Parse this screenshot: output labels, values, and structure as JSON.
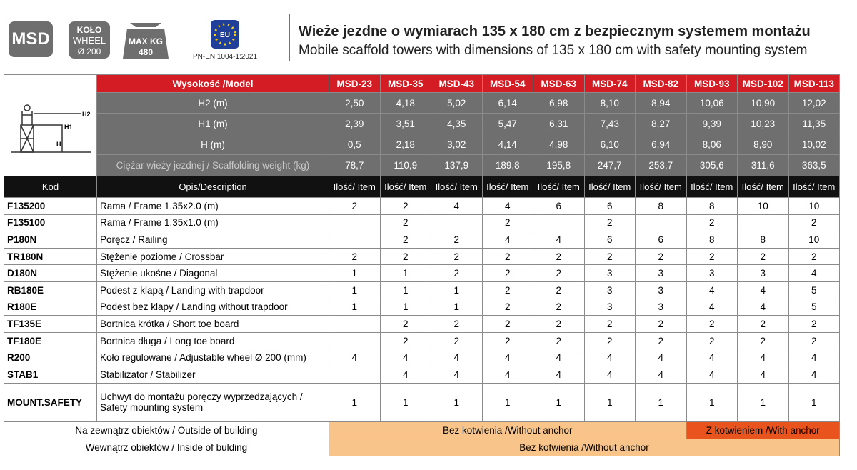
{
  "header": {
    "badge_model": "MSD",
    "badge_wheel": [
      "KOŁO",
      "WHEEL",
      "Ø 200"
    ],
    "badge_weight": [
      "MAX KG",
      "480"
    ],
    "badge_eu": "EU",
    "norm": "PN-EN 1004-1:2021",
    "title_pl": "Wieże jezdne o wymiarach 135 x 180 cm z bezpiecznym systemem montażu",
    "title_en": "Mobile scaffold towers with dimensions of 135 x 180 cm with safety mounting system"
  },
  "diagram": {
    "labels": [
      "H2",
      "H1",
      "H"
    ]
  },
  "table": {
    "model_label": "Wysokość /Model",
    "models": [
      "MSD-23",
      "MSD-35",
      "MSD-43",
      "MSD-54",
      "MSD-63",
      "MSD-74",
      "MSD-82",
      "MSD-93",
      "MSD-102",
      "MSD-113"
    ],
    "spec_rows": [
      {
        "label": "H2 (m)",
        "values": [
          "2,50",
          "4,18",
          "5,02",
          "6,14",
          "6,98",
          "8,10",
          "8,94",
          "10,06",
          "10,90",
          "12,02"
        ]
      },
      {
        "label": "H1 (m)",
        "values": [
          "2,39",
          "3,51",
          "4,35",
          "5,47",
          "6,31",
          "7,43",
          "8,27",
          "9,39",
          "10,23",
          "11,35"
        ]
      },
      {
        "label": "H (m)",
        "values": [
          "0,5",
          "2,18",
          "3,02",
          "4,14",
          "4,98",
          "6,10",
          "6,94",
          "8,06",
          "8,90",
          "10,02"
        ]
      },
      {
        "label": "Ciężar wieży jezdnej / Scaffolding weight (kg)",
        "values": [
          "78,7",
          "110,9",
          "137,9",
          "189,8",
          "195,8",
          "247,7",
          "253,7",
          "305,6",
          "311,6",
          "363,5"
        ]
      }
    ],
    "code_header": "Kod",
    "description_header": "Opis/Description",
    "item_headers": [
      "Ilość/ Item",
      "Ilość/ Item",
      "Ilość/ Item",
      "Ilość/ Item",
      "Ilość/ Item",
      "Ilość/ Item",
      "Ilość/ Item",
      "Ilość/ Item",
      "Ilość/ Item",
      "Ilość/ Item"
    ],
    "rows": [
      {
        "code": "F135200",
        "description": "Rama / Frame 1.35x2.0 (m)",
        "qty": [
          2,
          2,
          4,
          4,
          6,
          6,
          8,
          8,
          10,
          10
        ]
      },
      {
        "code": "F135100",
        "description": "Rama / Frame 1.35x1.0 (m)",
        "qty": [
          null,
          2,
          null,
          2,
          null,
          2,
          null,
          2,
          null,
          2
        ]
      },
      {
        "code": "P180N",
        "description": "Poręcz / Railing",
        "qty": [
          null,
          2,
          2,
          4,
          4,
          6,
          6,
          8,
          8,
          10
        ]
      },
      {
        "code": "TR180N",
        "description": "Stężenie poziome / Crossbar",
        "qty": [
          2,
          2,
          2,
          2,
          2,
          2,
          2,
          2,
          2,
          2
        ]
      },
      {
        "code": "D180N",
        "description": "Stężenie ukośne / Diagonal",
        "qty": [
          1,
          1,
          2,
          2,
          2,
          3,
          3,
          3,
          3,
          4
        ]
      },
      {
        "code": "RB180E",
        "description": "Podest z klapą / Landing with trapdoor",
        "qty": [
          1,
          1,
          1,
          2,
          2,
          3,
          3,
          4,
          4,
          5
        ]
      },
      {
        "code": "R180E",
        "description": "Podest bez klapy / Landing without trapdoor",
        "qty": [
          1,
          1,
          1,
          2,
          2,
          3,
          3,
          4,
          4,
          5
        ]
      },
      {
        "code": "TF135E",
        "description": "Bortnica krótka / Short toe board",
        "qty": [
          null,
          2,
          2,
          2,
          2,
          2,
          2,
          2,
          2,
          2
        ]
      },
      {
        "code": "TF180E",
        "description": "Bortnica długa / Long toe board",
        "qty": [
          null,
          2,
          2,
          2,
          2,
          2,
          2,
          2,
          2,
          2
        ]
      },
      {
        "code": "R200",
        "description": "Koło regulowane / Adjustable wheel Ø 200 (mm)",
        "qty": [
          4,
          4,
          4,
          4,
          4,
          4,
          4,
          4,
          4,
          4
        ]
      },
      {
        "code": "STAB1",
        "description": "Stabilizator / Stabilizer",
        "qty": [
          null,
          4,
          4,
          4,
          4,
          4,
          4,
          4,
          4,
          4
        ]
      },
      {
        "code": "MOUNT.SAFETY",
        "description": [
          "Uchwyt do montażu poręczy wyprzedzających /",
          "Safety mounting system"
        ],
        "qty": [
          1,
          1,
          1,
          1,
          1,
          1,
          1,
          1,
          1,
          1
        ]
      }
    ],
    "footer": {
      "outside": {
        "label": "Na zewnątrz obiektów / Outside of building",
        "without_anchor": "Bez kotwienia /Without anchor",
        "with_anchor": "Z kotwieniem /With anchor"
      },
      "inside": {
        "label": "Wewnątrz obiektów  / Inside of bulding",
        "without_anchor": "Bez kotwienia /Without anchor"
      }
    }
  }
}
